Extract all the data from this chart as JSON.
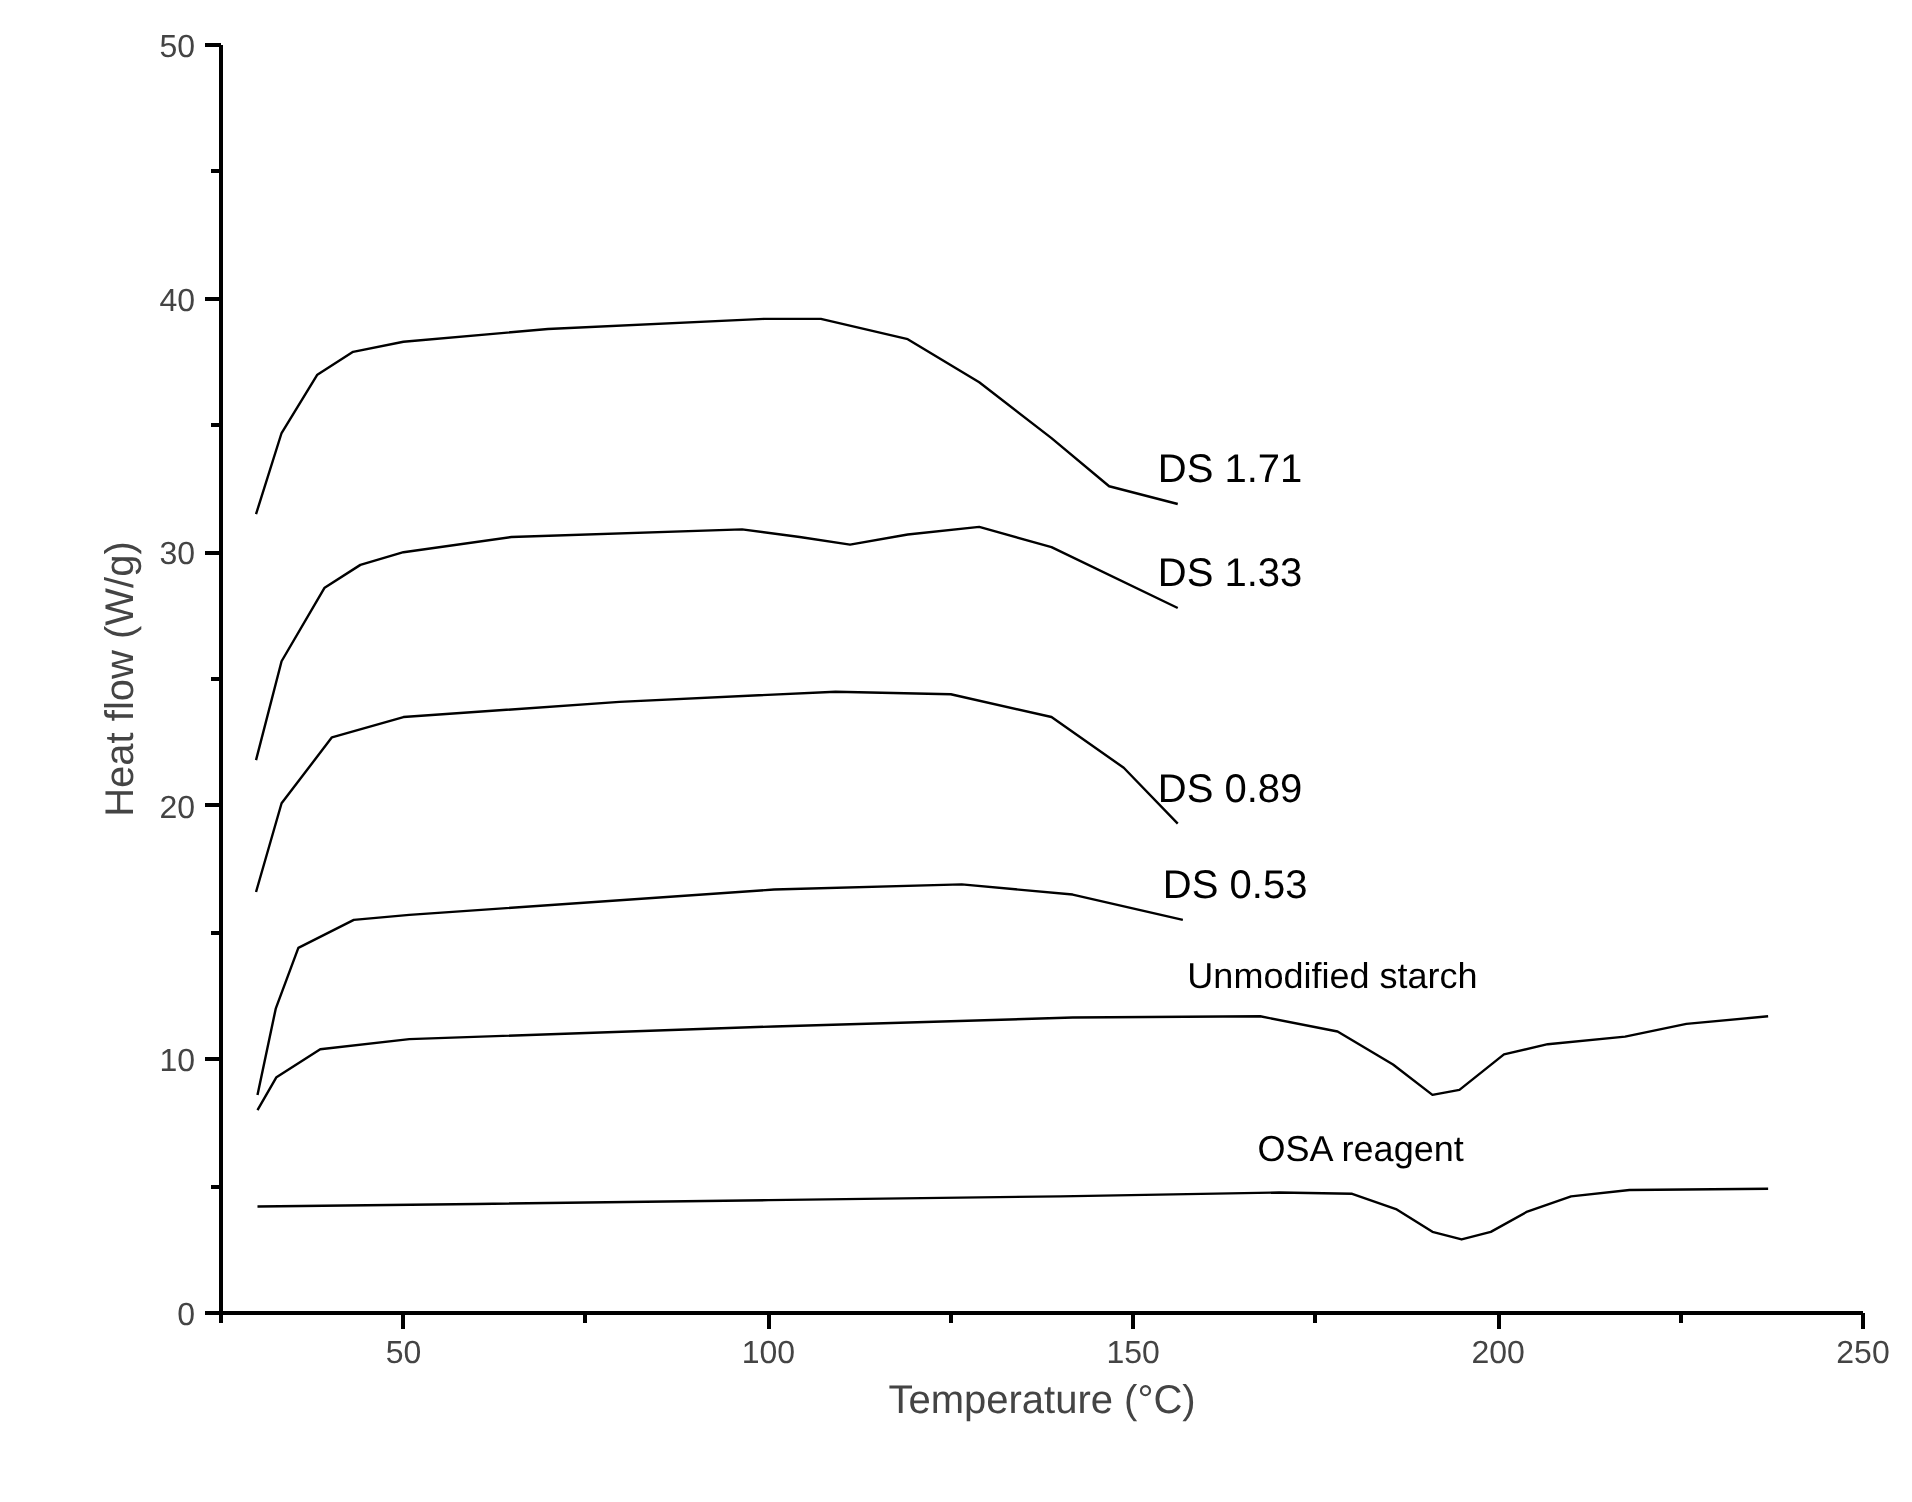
{
  "chart_data": {
    "type": "line",
    "xlabel": "Temperature (°C)",
    "ylabel": "Heat flow (W/g)",
    "xlim": [
      25,
      250
    ],
    "xticks": [
      50,
      100,
      150,
      200,
      250
    ],
    "ylim": [
      0,
      50
    ],
    "yticks": [
      0,
      10,
      20,
      30,
      40,
      50
    ],
    "grid": false,
    "series": [
      {
        "name": "DS 1.71",
        "color": "#000000",
        "x": [
          29.8,
          33.3,
          38.2,
          43.1,
          50,
          69.8,
          99.4,
          107.2,
          119.1,
          128.9,
          138.8,
          146.7,
          156.1
        ],
        "values": [
          31.5,
          34.7,
          37.0,
          37.9,
          38.3,
          38.8,
          39.2,
          39.2,
          38.4,
          36.7,
          34.5,
          32.6,
          31.9
        ]
      },
      {
        "name": "DS 1.33",
        "color": "#000000",
        "x": [
          29.8,
          33.3,
          39.2,
          44.1,
          50,
          64.8,
          96.4,
          104.3,
          111.2,
          119.1,
          128.9,
          138.8,
          156.1
        ],
        "values": [
          21.8,
          25.7,
          28.6,
          29.5,
          30.0,
          30.6,
          30.9,
          30.6,
          30.3,
          30.7,
          31.0,
          30.2,
          27.8
        ]
      },
      {
        "name": "DS 0.89",
        "color": "#000000",
        "x": [
          29.8,
          33.3,
          40.2,
          50,
          79.6,
          109.2,
          125.0,
          138.8,
          148.7,
          156.1
        ],
        "values": [
          16.6,
          20.1,
          22.7,
          23.5,
          24.1,
          24.5,
          24.4,
          23.5,
          21.5,
          19.3
        ]
      },
      {
        "name": "DS 0.53",
        "color": "#000000",
        "x": [
          30,
          32.5,
          35.6,
          43.2,
          50.8,
          100.8,
          126.5,
          141.7,
          156.8
        ],
        "values": [
          8.6,
          12.0,
          14.4,
          15.5,
          15.7,
          16.7,
          16.9,
          16.5,
          15.5
        ]
      },
      {
        "name": "Unmodified starch",
        "color": "#000000",
        "x": [
          30,
          32.6,
          38.6,
          50.8,
          100.8,
          141.7,
          167.4,
          178,
          185.6,
          191,
          194.7,
          200.8,
          206.8,
          217.4,
          225.8,
          237
        ],
        "values": [
          8.0,
          9.3,
          10.4,
          10.8,
          11.3,
          11.65,
          11.7,
          11.1,
          9.8,
          8.6,
          8.8,
          10.2,
          10.6,
          10.9,
          11.4,
          11.7
        ]
      },
      {
        "name": "OSA reagent",
        "color": "#000000",
        "x": [
          30,
          60,
          100,
          140,
          170,
          180,
          186,
          191,
          195,
          199,
          204,
          210,
          218,
          237
        ],
        "values": [
          4.2,
          4.3,
          4.45,
          4.6,
          4.75,
          4.7,
          4.1,
          3.2,
          2.9,
          3.2,
          4.0,
          4.6,
          4.85,
          4.9
        ]
      }
    ]
  }
}
